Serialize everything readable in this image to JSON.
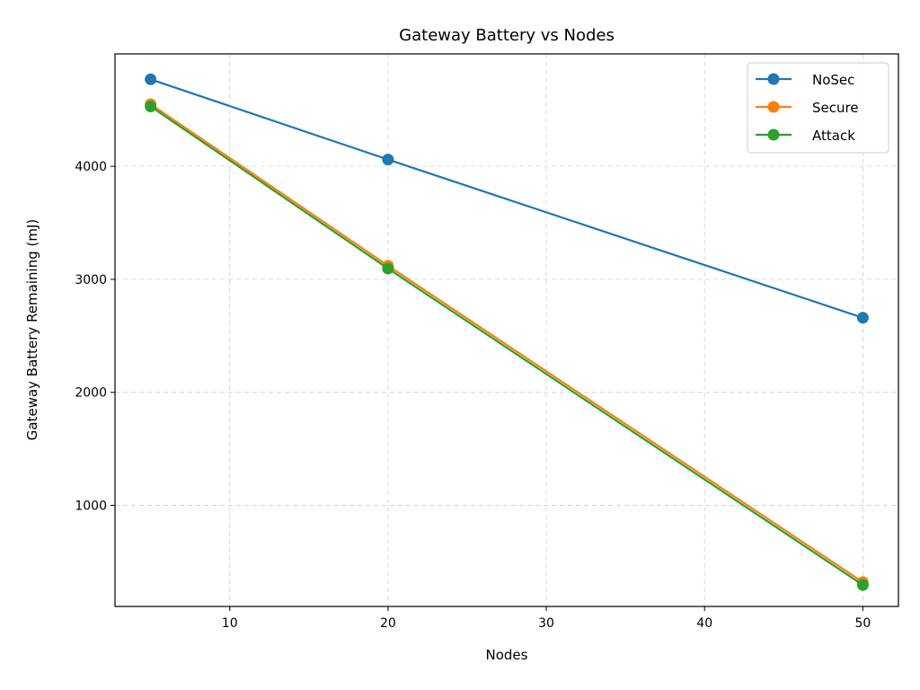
{
  "chart_data": {
    "type": "line",
    "title": "Gateway Battery vs Nodes",
    "xlabel": "Nodes",
    "ylabel": "Gateway Battery Remaining (mJ)",
    "x": [
      5,
      20,
      50
    ],
    "xlim": [
      2.75,
      52.25
    ],
    "ylim": [
      105,
      4995
    ],
    "xticks": [
      10,
      20,
      30,
      40,
      50
    ],
    "yticks": [
      1000,
      2000,
      3000,
      4000
    ],
    "grid": true,
    "legend": "top-right",
    "series": [
      {
        "name": "NoSec",
        "values": [
          4770,
          4060,
          2660
        ],
        "color": "#1f77b4"
      },
      {
        "name": "Secure",
        "values": [
          4550,
          3120,
          320
        ],
        "color": "#ff7f0e"
      },
      {
        "name": "Attack",
        "values": [
          4530,
          3095,
          295
        ],
        "color": "#2ca02c"
      }
    ]
  }
}
